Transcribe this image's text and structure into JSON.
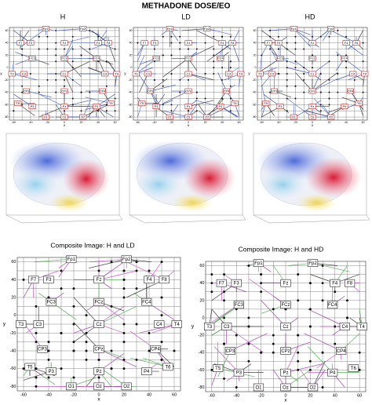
{
  "title": "METHADONE DOSE/EO",
  "panels": [
    {
      "label": "H"
    },
    {
      "label": "LD"
    },
    {
      "label": "HD"
    }
  ],
  "composites": [
    {
      "title": "Composite Image: H and LD"
    },
    {
      "title": "Composite Image: H and HD"
    }
  ],
  "electrodes": [
    "Fp1",
    "Fp2",
    "F7",
    "F3",
    "Fz",
    "F4",
    "F8",
    "FC3",
    "FCz",
    "FC4",
    "T3",
    "C3",
    "Cz",
    "C4",
    "T4",
    "CP3",
    "CPz",
    "CP4",
    "T5",
    "P3",
    "Pz",
    "P4",
    "T6",
    "O1",
    "Oz",
    "O2"
  ],
  "axes": {
    "x_label": "x",
    "y_label": "y",
    "xticks": [
      -60,
      -40,
      -20,
      0,
      20,
      40,
      60
    ],
    "yticks": [
      60,
      40,
      20,
      0,
      -20,
      -40,
      -60,
      -80
    ]
  }
}
